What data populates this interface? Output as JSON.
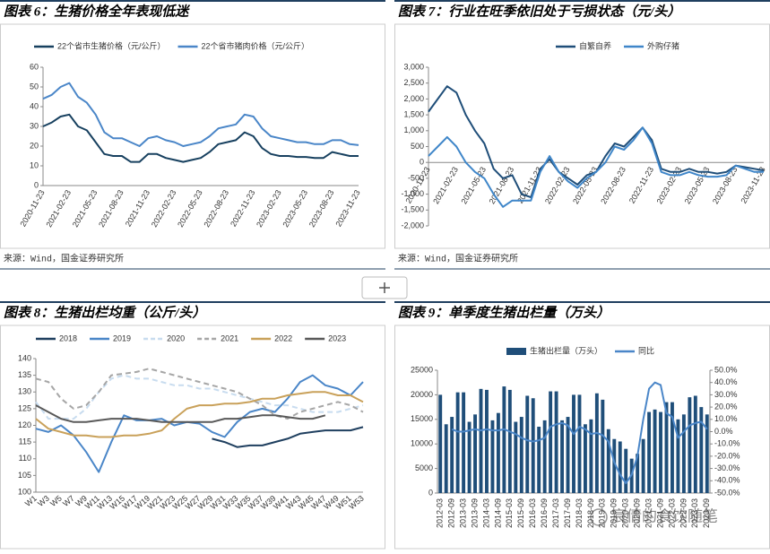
{
  "chart_data": [
    {
      "type": "line",
      "title": "图表 6：生猪价格全年表现低迷",
      "categories": [
        "2020-11-23",
        null,
        null,
        "2021-02-23",
        null,
        null,
        "2021-05-23",
        null,
        null,
        "2021-08-23",
        null,
        null,
        "2021-11-23",
        null,
        null,
        "2022-02-23",
        null,
        null,
        "2022-05-23",
        null,
        null,
        "2022-08-23",
        null,
        null,
        "2022-11-23",
        null,
        null,
        "2023-02-23",
        null,
        null,
        "2023-05-23",
        null,
        null,
        "2023-08-23",
        null,
        null,
        "2023-11-23"
      ],
      "series": [
        {
          "name": "22个省市生猪价格（元/公斤）",
          "color": "#17405f",
          "values": [
            30,
            32,
            35,
            36,
            30,
            28,
            22,
            16,
            15,
            15,
            12,
            12,
            16,
            16,
            14,
            13,
            12,
            13,
            14,
            17,
            21,
            22,
            23,
            27,
            25,
            19,
            16,
            15,
            15,
            14.5,
            14.5,
            14,
            14,
            17,
            16,
            15,
            15
          ]
        },
        {
          "name": "22个省市猪肉价格（元/公斤）",
          "color": "#4a86c8",
          "values": [
            44,
            46,
            50,
            52,
            45,
            42,
            36,
            27,
            24,
            24,
            22,
            20,
            24,
            25,
            23,
            22,
            20,
            21,
            22,
            25,
            29,
            30,
            31,
            36,
            35,
            29,
            25,
            24,
            23,
            22,
            22,
            21,
            21,
            23,
            23,
            21,
            20.5
          ]
        }
      ],
      "ylim": [
        0,
        60
      ],
      "yticks": [
        0,
        10,
        20,
        30,
        40,
        50,
        60
      ],
      "grid": false
    },
    {
      "type": "line",
      "title": "图表 7：行业在旺季依旧处于亏损状态（元/头）",
      "categories": [
        "2020-11-23",
        null,
        null,
        "2021-02-23",
        null,
        null,
        "2021-05-23",
        null,
        null,
        "2021-08-23",
        null,
        null,
        "2021-11-23",
        null,
        null,
        "2022-02-23",
        null,
        null,
        "2022-05-23",
        null,
        null,
        "2022-08-23",
        null,
        null,
        "2022-11-23",
        null,
        null,
        "2023-02-23",
        null,
        null,
        "2023-05-23",
        null,
        null,
        "2023-08-23",
        null,
        null,
        "2023-11-23"
      ],
      "series": [
        {
          "name": "自繁自养",
          "color": "#1f4e79",
          "values": [
            1600,
            2000,
            2400,
            2200,
            1500,
            1000,
            600,
            -200,
            -500,
            -400,
            -1000,
            -1100,
            -200,
            100,
            -300,
            -500,
            -700,
            -400,
            -300,
            200,
            600,
            500,
            800,
            1100,
            700,
            -200,
            -300,
            -300,
            -200,
            -300,
            -300,
            -350,
            -300,
            -100,
            -150,
            -200,
            -250
          ]
        },
        {
          "name": "外购仔猪",
          "color": "#3f86c9",
          "values": [
            200,
            500,
            800,
            500,
            0,
            -300,
            -500,
            -1000,
            -1400,
            -1200,
            -1200,
            -1200,
            -300,
            200,
            -300,
            -600,
            -800,
            -500,
            -300,
            0,
            500,
            400,
            700,
            1100,
            600,
            -300,
            -400,
            -400,
            -300,
            -400,
            -450,
            -450,
            -400,
            -100,
            -200,
            -300,
            -300
          ]
        }
      ],
      "ylim": [
        -2000,
        3000
      ],
      "yticks": [
        {
          "value": -2000,
          "label": "-2,000"
        },
        {
          "value": -1500,
          "label": "-1,500"
        },
        {
          "value": -1000,
          "label": "-1,000"
        },
        -500,
        0,
        500,
        {
          "value": 1000,
          "label": "1,000"
        },
        {
          "value": 1500,
          "label": "1,500"
        },
        {
          "value": 2000,
          "label": "2,000"
        },
        {
          "value": 2500,
          "label": "2,500"
        },
        {
          "value": 3000,
          "label": "3,000"
        }
      ],
      "grid": false
    },
    {
      "type": "line",
      "title": "图表 8：生猪出栏均重（公斤/头）",
      "categories": [
        "W1",
        "W3",
        "W5",
        "W7",
        "W9",
        "W11",
        "W13",
        "W15",
        "W17",
        "W19",
        "W21",
        "W23",
        "W25",
        "W27",
        "W29",
        "W31",
        "W33",
        "W35",
        "W37",
        "W39",
        "W41",
        "W43",
        "W45",
        "W47",
        "W49",
        "W51",
        "W53"
      ],
      "series": [
        {
          "name": "2018",
          "color": "#1f3f5f",
          "dash": false,
          "values": [
            null,
            null,
            null,
            null,
            null,
            null,
            null,
            null,
            null,
            null,
            null,
            null,
            null,
            null,
            116,
            115,
            113.5,
            114,
            114,
            115,
            116,
            117.5,
            118,
            118.5,
            118.5,
            118.5,
            119.5
          ]
        },
        {
          "name": "2019",
          "color": "#4a86c8",
          "dash": false,
          "values": [
            119,
            118,
            120,
            117,
            112,
            106,
            115,
            123,
            121.5,
            121.5,
            122,
            120,
            121,
            120.5,
            118,
            116.5,
            121,
            124,
            125,
            124,
            128,
            133,
            135,
            132,
            131,
            129,
            133
          ]
        },
        {
          "name": "2020",
          "color": "#c8dcef",
          "dash": true,
          "values": [
            127,
            122,
            122,
            122,
            125,
            130,
            134,
            135,
            134,
            134,
            133,
            132,
            132,
            131,
            131,
            130,
            129,
            128,
            127,
            126,
            126,
            125,
            124,
            124,
            124,
            125,
            126
          ]
        },
        {
          "name": "2021",
          "color": "#a6a6a6",
          "dash": true,
          "values": [
            134,
            133,
            128,
            125,
            126,
            130,
            135,
            135.5,
            136,
            137,
            136,
            135,
            134,
            133,
            132,
            131,
            130,
            128,
            126,
            123,
            122,
            124,
            125,
            126,
            127,
            126,
            124
          ]
        },
        {
          "name": "2022",
          "color": "#c9a15a",
          "dash": false,
          "values": [
            122,
            119,
            118,
            117,
            117,
            116.5,
            116.5,
            117,
            117,
            117.5,
            118.5,
            122,
            125,
            126,
            126,
            126.5,
            126.5,
            127,
            128,
            128,
            129,
            129.5,
            130,
            130,
            129,
            129,
            127
          ]
        },
        {
          "name": "2023",
          "color": "#595959",
          "dash": false,
          "values": [
            126,
            124,
            122,
            121,
            121,
            121.5,
            122,
            122,
            122,
            121.5,
            121,
            121,
            121,
            121,
            121,
            122,
            122,
            122.5,
            123,
            123,
            122.5,
            122,
            122,
            123,
            null,
            null,
            null
          ]
        }
      ],
      "ylim": [
        100,
        140
      ],
      "yticks": [
        100,
        105,
        110,
        115,
        120,
        125,
        130,
        135,
        140
      ],
      "grid": false
    },
    {
      "type": "combo",
      "title": "图表 9：单季度生猪出栏量（万头）",
      "categories": [
        "2012-03",
        null,
        "2012-09",
        null,
        "2013-03",
        null,
        "2013-09",
        null,
        "2014-03",
        null,
        "2014-09",
        null,
        "2015-03",
        null,
        "2015-09",
        null,
        "2016-03",
        null,
        "2016-09",
        null,
        "2017-03",
        null,
        "2017-09",
        null,
        "2018-03",
        null,
        "2018-09",
        null,
        "2019-03",
        null,
        "2019-09",
        null,
        "2020-03",
        null,
        "2020-09",
        null,
        "2021-03",
        null,
        "2021-09",
        null,
        "2022-03",
        null,
        "2022-09",
        null,
        "2023-03",
        null,
        "2023-09"
      ],
      "series": [
        {
          "name": "生猪出栏量（万头）",
          "type": "bar",
          "color": "#1f4e79",
          "values": [
            20000,
            14000,
            15500,
            20500,
            20500,
            14500,
            16000,
            21200,
            21000,
            14800,
            16300,
            21700,
            21000,
            14500,
            15500,
            19800,
            19300,
            13500,
            14800,
            20700,
            20700,
            14800,
            15500,
            20000,
            20000,
            14000,
            15000,
            20300,
            19000,
            13000,
            11000,
            10500,
            9000,
            7000,
            8000,
            11000,
            16500,
            17000,
            16500,
            18500,
            18500,
            15000,
            16000,
            19500,
            19800,
            17500,
            16000
          ]
        },
        {
          "name": "同比",
          "type": "line",
          "axis": "y2",
          "color": "#4a86c8",
          "values": [
            null,
            null,
            2,
            0,
            0,
            1,
            2,
            1,
            2,
            1,
            1,
            2,
            0,
            -2,
            -5,
            -7,
            -8,
            -7,
            -5,
            4,
            6,
            7,
            5,
            -2,
            4,
            2,
            -2,
            -1,
            -3,
            -8,
            -25,
            -35,
            -42,
            -35,
            -20,
            10,
            35,
            40,
            38,
            15,
            12,
            -5,
            0,
            5,
            7,
            8,
            2
          ]
        }
      ],
      "ylim": [
        0,
        25000
      ],
      "yticks": [
        0,
        5000,
        10000,
        15000,
        20000,
        25000
      ],
      "y2lim": [
        -50,
        50
      ],
      "y2ticks": [
        {
          "value": -50,
          "label": "-50.0%"
        },
        {
          "value": -40,
          "label": "-40.0%"
        },
        {
          "value": -30,
          "label": "-30.0%"
        },
        {
          "value": -20,
          "label": "-20.0%"
        },
        {
          "value": -10,
          "label": "-10.0%"
        },
        {
          "value": 0,
          "label": "0.0%"
        },
        {
          "value": 10,
          "label": "10.0%"
        },
        {
          "value": 20,
          "label": "20.0%"
        },
        {
          "value": 30,
          "label": "30.0%"
        },
        {
          "value": 40,
          "label": "40.0%"
        },
        {
          "value": 50,
          "label": "50.0%"
        }
      ],
      "grid": false
    }
  ],
  "sources": [
    "来源：Wind，国金证券研究所",
    "来源：Wind，国金证券研究所"
  ],
  "watermark": "宸倩的食饮随笔"
}
